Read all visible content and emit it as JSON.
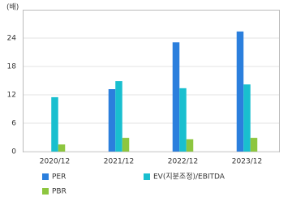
{
  "chart_data": {
    "type": "bar",
    "unit_label": "(배)",
    "categories": [
      "2020/12",
      "2021/12",
      "2022/12",
      "2023/12"
    ],
    "series": [
      {
        "name": "PER",
        "color": "#2b7fdd",
        "values": [
          null,
          13.2,
          23.1,
          25.4
        ]
      },
      {
        "name": "EV(지분조정)/EBITDA",
        "color": "#19bfcf",
        "values": [
          11.5,
          14.9,
          13.4,
          14.2
        ]
      },
      {
        "name": "PBR",
        "color": "#8dc63f",
        "values": [
          1.5,
          2.9,
          2.6,
          2.9
        ]
      }
    ],
    "ylim": [
      0,
      30
    ],
    "yticks": [
      0,
      6,
      12,
      18,
      24
    ],
    "grid": true
  }
}
